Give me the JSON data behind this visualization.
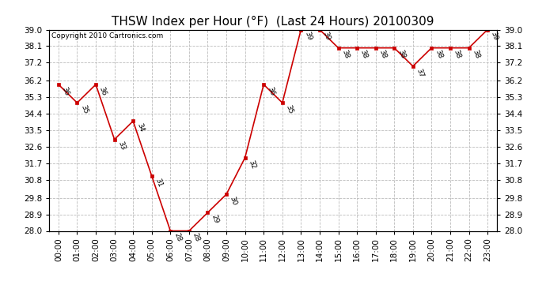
{
  "title": "THSW Index per Hour (°F)  (Last 24 Hours) 20100309",
  "copyright": "Copyright 2010 Cartronics.com",
  "hours": [
    "00:00",
    "01:00",
    "02:00",
    "03:00",
    "04:00",
    "05:00",
    "06:00",
    "07:00",
    "08:00",
    "09:00",
    "10:00",
    "11:00",
    "12:00",
    "13:00",
    "14:00",
    "15:00",
    "16:00",
    "17:00",
    "18:00",
    "19:00",
    "20:00",
    "21:00",
    "22:00",
    "23:00"
  ],
  "values": [
    36,
    35,
    36,
    33,
    34,
    31,
    28,
    28,
    29,
    30,
    32,
    36,
    35,
    39,
    39,
    38,
    38,
    38,
    38,
    37,
    38,
    38,
    38,
    39
  ],
  "line_color": "#cc0000",
  "marker_color": "#cc0000",
  "bg_color": "#ffffff",
  "grid_color": "#bbbbbb",
  "ylim_min": 28.0,
  "ylim_max": 39.0,
  "yticks": [
    28.0,
    28.9,
    29.8,
    30.8,
    31.7,
    32.6,
    33.5,
    34.4,
    35.3,
    36.2,
    37.2,
    38.1,
    39.0
  ],
  "ytick_labels": [
    "28.0",
    "28.9",
    "29.8",
    "30.8",
    "31.7",
    "32.6",
    "33.5",
    "34.4",
    "35.3",
    "36.2",
    "37.2",
    "38.1",
    "39.0"
  ],
  "title_fontsize": 11,
  "label_fontsize": 6.5,
  "tick_fontsize": 7.5,
  "copyright_fontsize": 6.5
}
